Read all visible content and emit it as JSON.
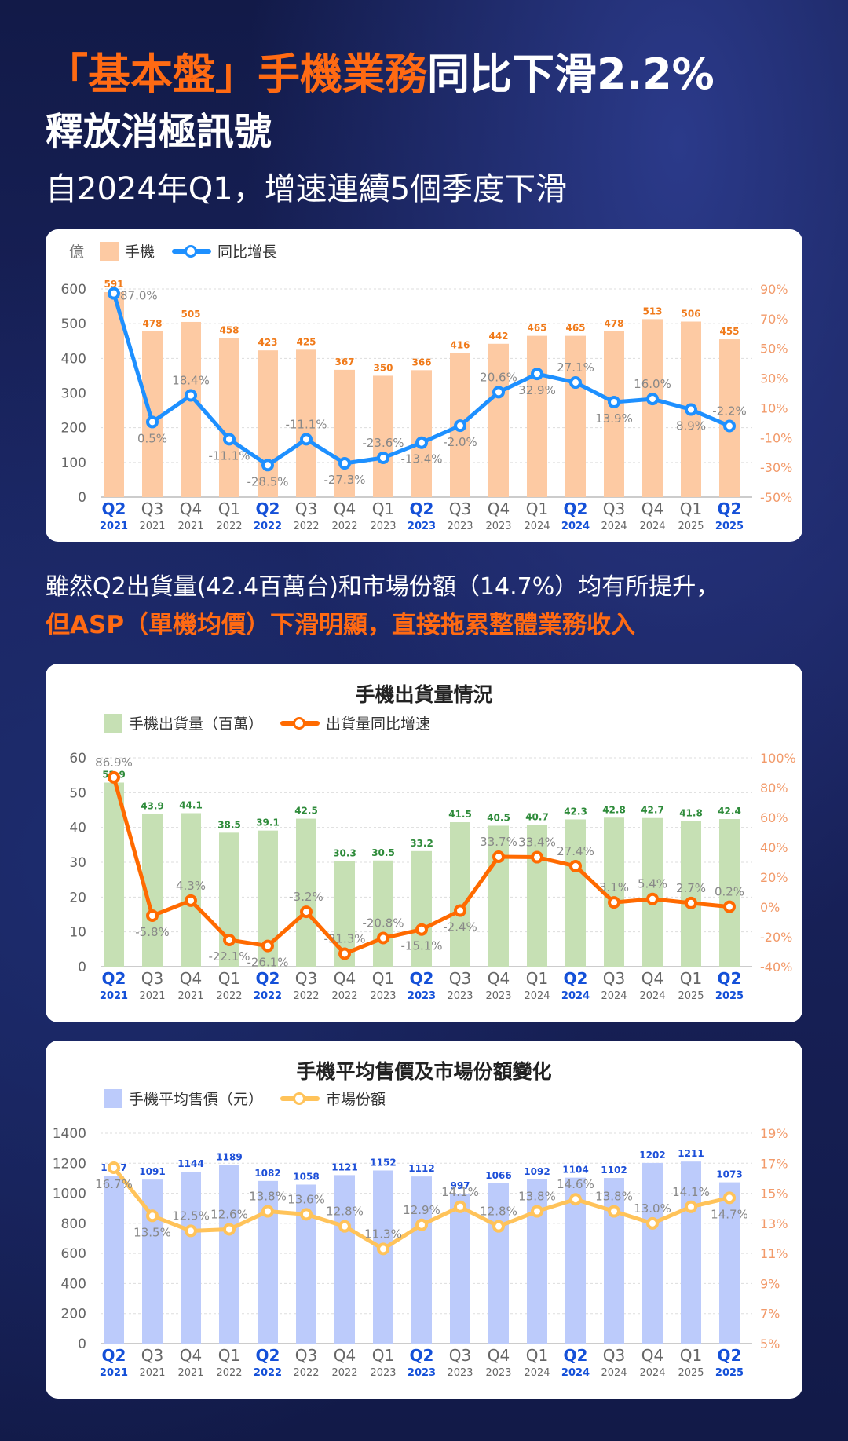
{
  "header": {
    "title_highlight": "「基本盤」手機業務",
    "title_rest": "同比下滑2.2%",
    "title_line2": "釋放消極訊號",
    "subtitle": "自2024年Q1，增速連續5個季度下滑"
  },
  "paragraph": {
    "line1": "雖然Q2出貨量(42.4百萬台)和市場份額（14.7%）均有所提升，",
    "line2": "但ASP（單機均價）下滑明顯，直接拖累整體業務收入"
  },
  "quarters": [
    "Q2",
    "Q3",
    "Q4",
    "Q1",
    "Q2",
    "Q3",
    "Q4",
    "Q1",
    "Q2",
    "Q3",
    "Q4",
    "Q1",
    "Q2",
    "Q3",
    "Q4",
    "Q1",
    "Q2"
  ],
  "years": [
    "2021",
    "2021",
    "2021",
    "2022",
    "2022",
    "2022",
    "2022",
    "2023",
    "2023",
    "2023",
    "2023",
    "2024",
    "2024",
    "2024",
    "2024",
    "2025",
    "2025"
  ],
  "chart_data": [
    {
      "type": "bar+line",
      "title": "",
      "unit_label": "億",
      "ylim": [
        0,
        600
      ],
      "yticks": [
        "0",
        "100",
        "200",
        "300",
        "400",
        "500",
        "600"
      ],
      "y2lim": [
        -50,
        90
      ],
      "y2ticks": [
        "-50%",
        "-30%",
        "-10%",
        "10%",
        "30%",
        "50%",
        "70%",
        "90%"
      ],
      "bar_series": {
        "name": "手機",
        "color": "#fdcaa3",
        "label_color": "#f07a1a",
        "values": [
          591,
          478,
          505,
          458,
          423,
          425,
          367,
          350,
          366,
          416,
          442,
          465,
          465,
          478,
          513,
          506,
          455
        ]
      },
      "line_series": {
        "name": "同比增長",
        "color": "#1e90ff",
        "values": [
          87.0,
          0.5,
          18.4,
          -11.1,
          -28.5,
          -11.1,
          -27.3,
          -23.6,
          -13.4,
          -2.0,
          20.6,
          32.9,
          27.1,
          13.9,
          16.0,
          8.9,
          -2.2
        ]
      }
    },
    {
      "type": "bar+line",
      "title": "手機出貨量情況",
      "ylim": [
        0,
        60
      ],
      "yticks": [
        "0",
        "10",
        "20",
        "30",
        "40",
        "50",
        "60"
      ],
      "y2lim": [
        -40,
        100
      ],
      "y2ticks": [
        "-40%",
        "-20%",
        "0%",
        "20%",
        "40%",
        "60%",
        "80%",
        "100%"
      ],
      "bar_series": {
        "name": "手機出貨量（百萬）",
        "color": "#c6e0b4",
        "label_color": "#2e8b3a",
        "values": [
          52.9,
          43.9,
          44.1,
          38.5,
          39.1,
          42.5,
          30.3,
          30.5,
          33.2,
          41.5,
          40.5,
          40.7,
          42.3,
          42.8,
          42.7,
          41.8,
          42.4
        ]
      },
      "line_series": {
        "name": "出貨量同比增速",
        "color": "#ff6a00",
        "values": [
          86.9,
          -5.8,
          4.3,
          -22.1,
          -26.1,
          -3.2,
          -31.3,
          -20.8,
          -15.1,
          -2.4,
          33.7,
          33.4,
          27.4,
          3.1,
          5.4,
          2.7,
          0.2
        ]
      }
    },
    {
      "type": "bar+line",
      "title": "手機平均售價及市場份額變化",
      "ylim": [
        0,
        1400
      ],
      "yticks": [
        "0",
        "200",
        "400",
        "600",
        "800",
        "1000",
        "1200",
        "1400"
      ],
      "y2lim": [
        5,
        19
      ],
      "y2ticks": [
        "5%",
        "7%",
        "9%",
        "11%",
        "13%",
        "15%",
        "17%",
        "19%"
      ],
      "bar_series": {
        "name": "手機平均售價（元）",
        "color": "#bccbfb",
        "label_color": "#1d4fd8",
        "values": [
          1117,
          1091,
          1144,
          1189,
          1082,
          1058,
          1121,
          1152,
          1112,
          997,
          1066,
          1092,
          1104,
          1102,
          1202,
          1211,
          1073
        ]
      },
      "line_series": {
        "name": "市場份額",
        "color": "#ffc35a",
        "values": [
          16.7,
          13.5,
          12.5,
          12.6,
          13.8,
          13.6,
          12.8,
          11.3,
          12.9,
          14.1,
          12.8,
          13.8,
          14.6,
          13.8,
          13.0,
          14.1,
          14.7
        ]
      }
    }
  ],
  "colors": {
    "q2_label": "#1450d8",
    "axis_label": "#666",
    "right_axis": "#f29a6a",
    "accent": "#ff6a13"
  }
}
